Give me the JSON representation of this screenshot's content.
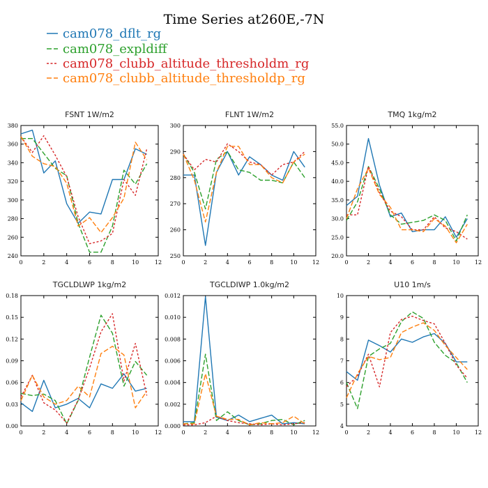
{
  "figure": {
    "title": "Time Series at260E,-7N",
    "legend": [
      {
        "label": "cam078_dflt_rg",
        "color": "#1f77b4",
        "dash": "solid"
      },
      {
        "label": "cam078_expldiff",
        "color": "#2ca02c",
        "dash": "dashed"
      },
      {
        "label": "cam078_clubb_altitude_thresholdm_rg",
        "color": "#d62728",
        "dash": "dotted"
      },
      {
        "label": "cam078_clubb_altitude_thresholdp_rg",
        "color": "#ff7f0e",
        "dash": "dashed"
      }
    ]
  },
  "chart_data": [
    {
      "type": "line",
      "title": "FSNT   1W/m2",
      "x": [
        0,
        1,
        2,
        3,
        4,
        5,
        6,
        7,
        8,
        9,
        10,
        11
      ],
      "xlim": [
        0,
        12
      ],
      "xticks": [
        0,
        2,
        4,
        6,
        8,
        10,
        12
      ],
      "ylim": [
        240,
        380
      ],
      "yticks": [
        240,
        260,
        280,
        300,
        320,
        340,
        360,
        380
      ],
      "ytick_labels": [
        "240",
        "260",
        "280",
        "300",
        "320",
        "340",
        "360",
        "380"
      ],
      "series": [
        {
          "name": "cam078_dflt_rg",
          "values": [
            371,
            375,
            329,
            342,
            296,
            275,
            287,
            285,
            322,
            322,
            355,
            349
          ]
        },
        {
          "name": "cam078_expldiff",
          "values": [
            366,
            366,
            350,
            334,
            326,
            275,
            244,
            244,
            272,
            332,
            317,
            339
          ]
        },
        {
          "name": "cam078_clubb_altitude_thresholdm_rg",
          "values": [
            368,
            351,
            369,
            348,
            325,
            282,
            253,
            256,
            264,
            322,
            305,
            355
          ]
        },
        {
          "name": "cam078_clubb_altitude_thresholdp_rg",
          "values": [
            368,
            347,
            339,
            336,
            318,
            272,
            281,
            265,
            281,
            302,
            362,
            343
          ]
        }
      ]
    },
    {
      "type": "line",
      "title": "FLNT   1W/m2",
      "x": [
        0,
        1,
        2,
        3,
        4,
        5,
        6,
        7,
        8,
        9,
        10,
        11
      ],
      "xlim": [
        0,
        12
      ],
      "xticks": [
        0,
        2,
        4,
        6,
        8,
        10,
        12
      ],
      "ylim": [
        250,
        300
      ],
      "yticks": [
        250,
        260,
        270,
        280,
        290,
        300
      ],
      "ytick_labels": [
        "250",
        "260",
        "270",
        "280",
        "290",
        "300"
      ],
      "series": [
        {
          "name": "cam078_dflt_rg",
          "values": [
            281,
            281,
            254,
            282,
            290,
            281,
            288,
            285,
            281,
            279,
            290,
            284
          ]
        },
        {
          "name": "cam078_expldiff",
          "values": [
            289,
            282,
            268,
            287,
            290,
            283,
            282,
            279,
            279,
            278,
            286,
            280
          ]
        },
        {
          "name": "cam078_clubb_altitude_thresholdm_rg",
          "values": [
            289,
            283,
            287,
            286,
            293,
            290,
            286,
            285,
            281,
            285,
            286,
            290
          ]
        },
        {
          "name": "cam078_clubb_altitude_thresholdp_rg",
          "values": [
            289,
            279,
            263,
            282,
            292,
            292,
            285,
            285,
            280,
            278,
            286,
            289
          ]
        }
      ]
    },
    {
      "type": "line",
      "title": "TMQ   1kg/m2",
      "x": [
        0,
        1,
        2,
        3,
        4,
        5,
        6,
        7,
        8,
        9,
        10,
        11
      ],
      "xlim": [
        0,
        12
      ],
      "xticks": [
        0,
        2,
        4,
        6,
        8,
        10,
        12
      ],
      "ylim": [
        20,
        55
      ],
      "yticks": [
        20,
        25,
        30,
        35,
        40,
        45,
        50,
        55
      ],
      "ytick_labels": [
        "20.0",
        "25.0",
        "30.0",
        "35.0",
        "40.0",
        "45.0",
        "50.0",
        "55.0"
      ],
      "series": [
        {
          "name": "cam078_dflt_rg",
          "values": [
            33.5,
            36,
            51.5,
            39,
            30.5,
            31.5,
            26.5,
            27,
            27,
            30.5,
            25,
            30
          ]
        },
        {
          "name": "cam078_expldiff",
          "values": [
            29.5,
            34.5,
            44,
            38,
            31,
            28.5,
            29,
            29.5,
            31,
            29.5,
            24,
            31
          ]
        },
        {
          "name": "cam078_clubb_altitude_thresholdm_rg",
          "values": [
            31,
            31,
            44,
            37,
            32,
            30.5,
            27,
            27,
            30.5,
            27.5,
            26.5,
            24.5
          ]
        },
        {
          "name": "cam078_clubb_altitude_thresholdp_rg",
          "values": [
            30,
            38,
            43.5,
            36.5,
            33,
            27,
            27,
            26.5,
            30,
            28,
            23.5,
            28.5
          ]
        }
      ]
    },
    {
      "type": "line",
      "title": "TGCLDLWP   1kg/m2",
      "x": [
        0,
        1,
        2,
        3,
        4,
        5,
        6,
        7,
        8,
        9,
        10,
        11
      ],
      "xlim": [
        0,
        12
      ],
      "xticks": [
        0,
        2,
        4,
        6,
        8,
        10,
        12
      ],
      "ylim": [
        0,
        0.18
      ],
      "yticks": [
        0,
        0.03,
        0.06,
        0.09,
        0.12,
        0.15,
        0.18
      ],
      "ytick_labels": [
        "0.00",
        "0.03",
        "0.06",
        "0.09",
        "0.12",
        "0.15",
        "0.18"
      ],
      "series": [
        {
          "name": "cam078_dflt_rg",
          "values": [
            0.032,
            0.02,
            0.063,
            0.025,
            0.03,
            0.038,
            0.025,
            0.058,
            0.052,
            0.072,
            0.048,
            0.052
          ]
        },
        {
          "name": "cam078_expldiff",
          "values": [
            0.045,
            0.042,
            0.044,
            0.035,
            0.003,
            0.035,
            0.095,
            0.153,
            0.128,
            0.055,
            0.089,
            0.07
          ]
        },
        {
          "name": "cam078_clubb_altitude_thresholdm_rg",
          "values": [
            0.04,
            0.07,
            0.032,
            0.022,
            0.004,
            0.036,
            0.08,
            0.13,
            0.155,
            0.062,
            0.114,
            0.042
          ]
        },
        {
          "name": "cam078_clubb_altitude_thresholdp_rg",
          "values": [
            0.035,
            0.07,
            0.04,
            0.03,
            0.035,
            0.055,
            0.04,
            0.1,
            0.11,
            0.098,
            0.025,
            0.048
          ]
        }
      ]
    },
    {
      "type": "line",
      "title": "TGCLDIWP   1.0kg/m2",
      "x": [
        0,
        1,
        2,
        3,
        4,
        5,
        6,
        7,
        8,
        9,
        10,
        11
      ],
      "xlim": [
        0,
        12
      ],
      "xticks": [
        0,
        2,
        4,
        6,
        8,
        10,
        12
      ],
      "ylim": [
        0,
        0.012
      ],
      "yticks": [
        0,
        0.002,
        0.004,
        0.006,
        0.008,
        0.01,
        0.012
      ],
      "ytick_labels": [
        "0.000",
        "0.002",
        "0.004",
        "0.006",
        "0.008",
        "0.010",
        "0.012"
      ],
      "series": [
        {
          "name": "cam078_dflt_rg",
          "values": [
            0.0004,
            0.0004,
            0.0119,
            0.0008,
            0.0005,
            0.001,
            0.0004,
            0.0007,
            0.001,
            0.0002,
            0.0003,
            0.0002
          ]
        },
        {
          "name": "cam078_expldiff",
          "values": [
            0.0002,
            0.0003,
            0.0066,
            0.0005,
            0.0013,
            0.0005,
            0.0001,
            0.0002,
            0.0005,
            0.0006,
            0.0001,
            0.0005
          ]
        },
        {
          "name": "cam078_clubb_altitude_thresholdm_rg",
          "values": [
            0.0001,
            0.0001,
            0.0003,
            0.0009,
            0.0005,
            0.0003,
            0.0002,
            0.0001,
            0.0002,
            0.0001,
            0.0002,
            0.0003
          ]
        },
        {
          "name": "cam078_clubb_altitude_thresholdp_rg",
          "values": [
            0.0002,
            0.0002,
            0.0048,
            0.0009,
            0.0006,
            0.0006,
            0.0001,
            0.0003,
            0.0002,
            0.0003,
            0.0009,
            0.0002
          ]
        }
      ]
    },
    {
      "type": "line",
      "title": "U10   1m/s",
      "x": [
        0,
        1,
        2,
        3,
        4,
        5,
        6,
        7,
        8,
        9,
        10,
        11
      ],
      "xlim": [
        0,
        12
      ],
      "xticks": [
        0,
        2,
        4,
        6,
        8,
        10,
        12
      ],
      "ylim": [
        4,
        10
      ],
      "yticks": [
        4,
        5,
        6,
        7,
        8,
        9,
        10
      ],
      "ytick_labels": [
        "4",
        "5",
        "6",
        "7",
        "8",
        "9",
        "10"
      ],
      "series": [
        {
          "name": "cam078_dflt_rg",
          "values": [
            6.5,
            6.1,
            7.95,
            7.7,
            7.4,
            8,
            7.85,
            8.1,
            8.25,
            7.8,
            6.95,
            6.95
          ]
        },
        {
          "name": "cam078_expldiff",
          "values": [
            6,
            4.8,
            7.2,
            7.55,
            7.8,
            8.8,
            9.25,
            8.95,
            7.85,
            7.25,
            6.9,
            6
          ]
        },
        {
          "name": "cam078_clubb_altitude_thresholdm_rg",
          "values": [
            5.8,
            6.3,
            7.3,
            5.8,
            8.3,
            8.9,
            9.05,
            8.85,
            8.7,
            7.8,
            6.8,
            6.2
          ]
        },
        {
          "name": "cam078_clubb_altitude_thresholdp_rg",
          "values": [
            5.3,
            6.4,
            7.2,
            7.05,
            7.15,
            8.3,
            8.55,
            8.75,
            8.4,
            7.7,
            7.15,
            6.6
          ]
        }
      ]
    }
  ]
}
